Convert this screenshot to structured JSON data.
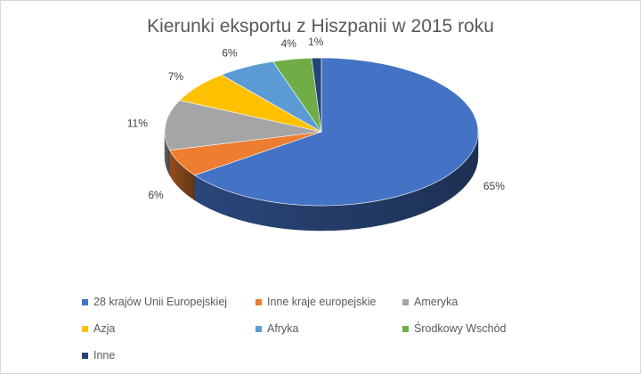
{
  "chart_data": {
    "type": "pie",
    "style": "3d-pie",
    "title": "Kierunki eksportu z Hiszpanii w 2015 roku",
    "categories": [
      "28 krajów Unii Europejskiej",
      "Inne kraje europejskie",
      "Ameryka",
      "Azja",
      "Afryka",
      "Środkowy Wschód",
      "Inne"
    ],
    "values": [
      65,
      6,
      11,
      7,
      6,
      4,
      1
    ],
    "data_labels": [
      "65%",
      "6%",
      "11%",
      "7%",
      "6%",
      "4%",
      "1%"
    ],
    "colors": [
      "#4472C4",
      "#ED7D31",
      "#A5A5A5",
      "#FFC000",
      "#5B9BD5",
      "#70AD47",
      "#264478"
    ],
    "legend_position": "bottom"
  }
}
